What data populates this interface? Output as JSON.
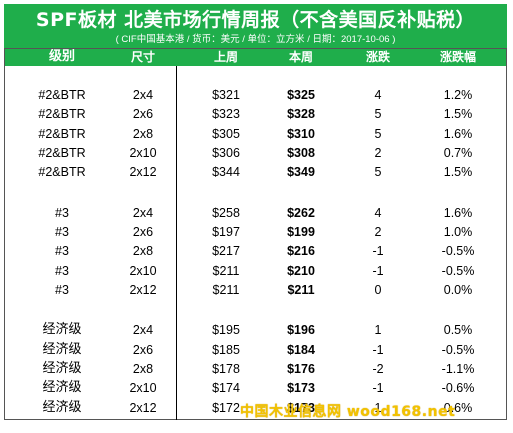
{
  "title": "SPF板材 北美市场行情周报（不含美国反补贴税）",
  "subtitle": "( CIF中国基本港 / 货币：美元 / 单位：立方米 / 日期：2017-10-06 )",
  "columns": [
    "级别",
    "尺寸",
    "上周",
    "本周",
    "涨跌",
    "涨跌幅"
  ],
  "groups": [
    {
      "rows": [
        {
          "grade": "#2&BTR",
          "size": "2x4",
          "last": "$321",
          "this": "$325",
          "change": "4",
          "pct": "1.2%"
        },
        {
          "grade": "#2&BTR",
          "size": "2x6",
          "last": "$323",
          "this": "$328",
          "change": "5",
          "pct": "1.5%"
        },
        {
          "grade": "#2&BTR",
          "size": "2x8",
          "last": "$305",
          "this": "$310",
          "change": "5",
          "pct": "1.6%"
        },
        {
          "grade": "#2&BTR",
          "size": "2x10",
          "last": "$306",
          "this": "$308",
          "change": "2",
          "pct": "0.7%"
        },
        {
          "grade": "#2&BTR",
          "size": "2x12",
          "last": "$344",
          "this": "$349",
          "change": "5",
          "pct": "1.5%"
        }
      ]
    },
    {
      "rows": [
        {
          "grade": "#3",
          "size": "2x4",
          "last": "$258",
          "this": "$262",
          "change": "4",
          "pct": "1.6%"
        },
        {
          "grade": "#3",
          "size": "2x6",
          "last": "$197",
          "this": "$199",
          "change": "2",
          "pct": "1.0%"
        },
        {
          "grade": "#3",
          "size": "2x8",
          "last": "$217",
          "this": "$216",
          "change": "-1",
          "pct": "-0.5%"
        },
        {
          "grade": "#3",
          "size": "2x10",
          "last": "$211",
          "this": "$210",
          "change": "-1",
          "pct": "-0.5%"
        },
        {
          "grade": "#3",
          "size": "2x12",
          "last": "$211",
          "this": "$211",
          "change": "0",
          "pct": "0.0%"
        }
      ]
    },
    {
      "rows": [
        {
          "grade": "经济级",
          "size": "2x4",
          "last": "$195",
          "this": "$196",
          "change": "1",
          "pct": "0.5%"
        },
        {
          "grade": "经济级",
          "size": "2x6",
          "last": "$185",
          "this": "$184",
          "change": "-1",
          "pct": "-0.5%"
        },
        {
          "grade": "经济级",
          "size": "2x8",
          "last": "$178",
          "this": "$176",
          "change": "-2",
          "pct": "-1.1%"
        },
        {
          "grade": "经济级",
          "size": "2x10",
          "last": "$174",
          "this": "$173",
          "change": "-1",
          "pct": "-0.6%"
        },
        {
          "grade": "经济级",
          "size": "2x12",
          "last": "$172",
          "this": "$173",
          "change": "1",
          "pct": "0.6%"
        }
      ]
    }
  ],
  "watermark": {
    "text": "中国木业信息网 wood168.net",
    "logo_color": "#d92b2b",
    "text_color": "#f2c200"
  },
  "colors": {
    "header_green": "#1fae4b"
  }
}
